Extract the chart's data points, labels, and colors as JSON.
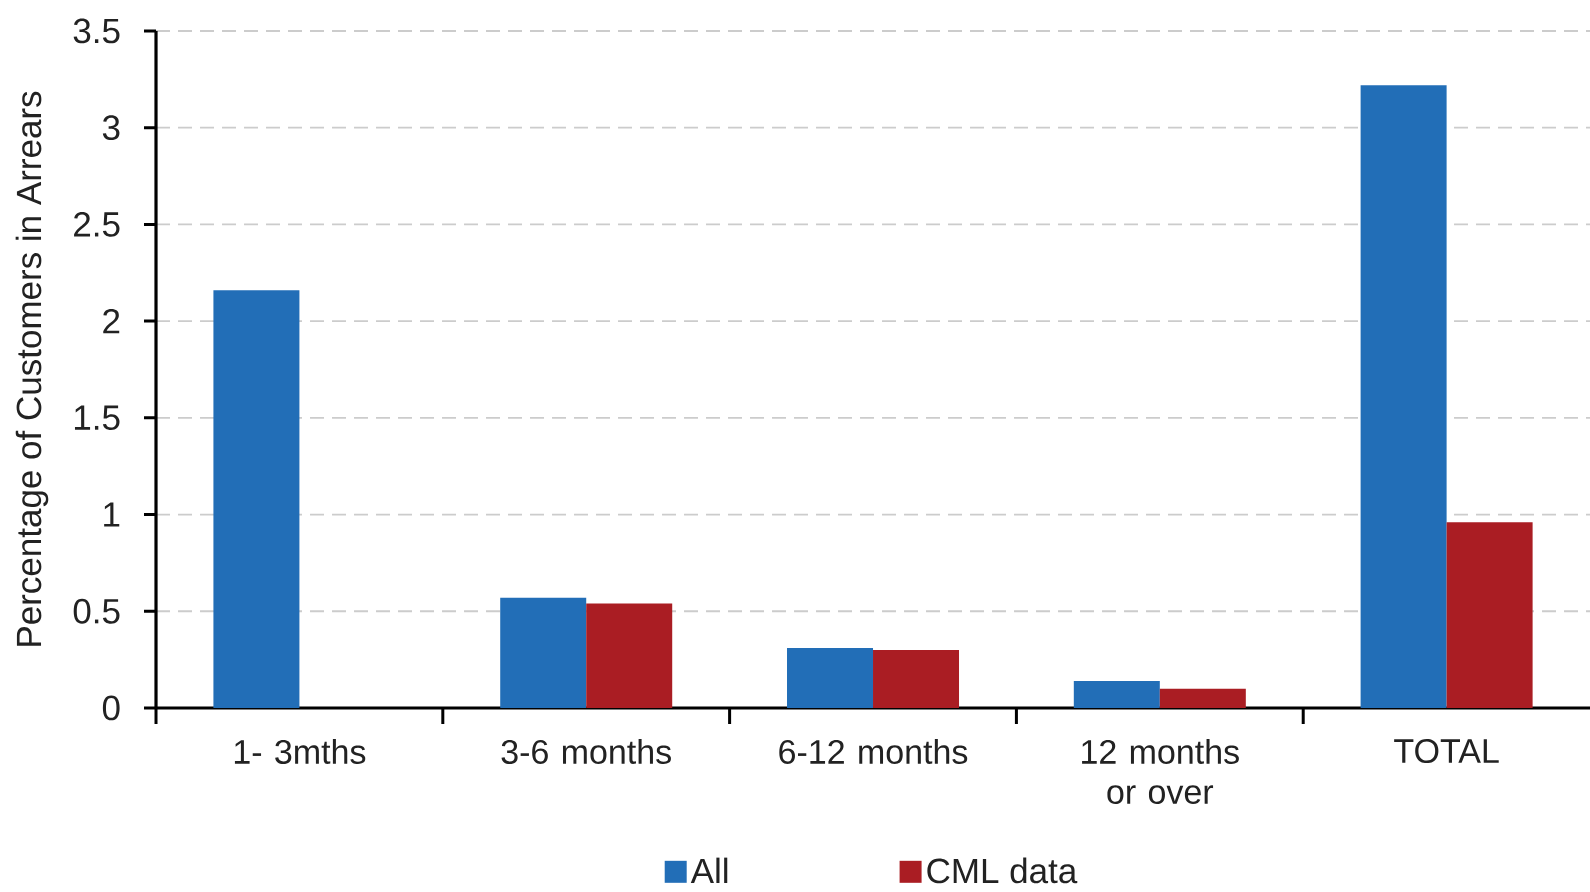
{
  "chart_data": {
    "type": "bar",
    "ylabel": "Percentage of Customers in Arrears",
    "categories": [
      "1- 3mths",
      "3-6 months",
      "6-12 months",
      "12 months or over",
      "TOTAL"
    ],
    "series": [
      {
        "name": "All",
        "color": "#226eb7",
        "values": [
          2.16,
          0.57,
          0.31,
          0.14,
          3.22
        ]
      },
      {
        "name": "CML data",
        "color": "#aa1d23",
        "values": [
          null,
          0.54,
          0.3,
          0.1,
          0.96
        ]
      }
    ],
    "ylim": [
      0,
      3.5
    ],
    "yticks": [
      0,
      0.5,
      1,
      1.5,
      2,
      2.5,
      3,
      3.5
    ],
    "grid": "y",
    "legend": "bottom"
  }
}
